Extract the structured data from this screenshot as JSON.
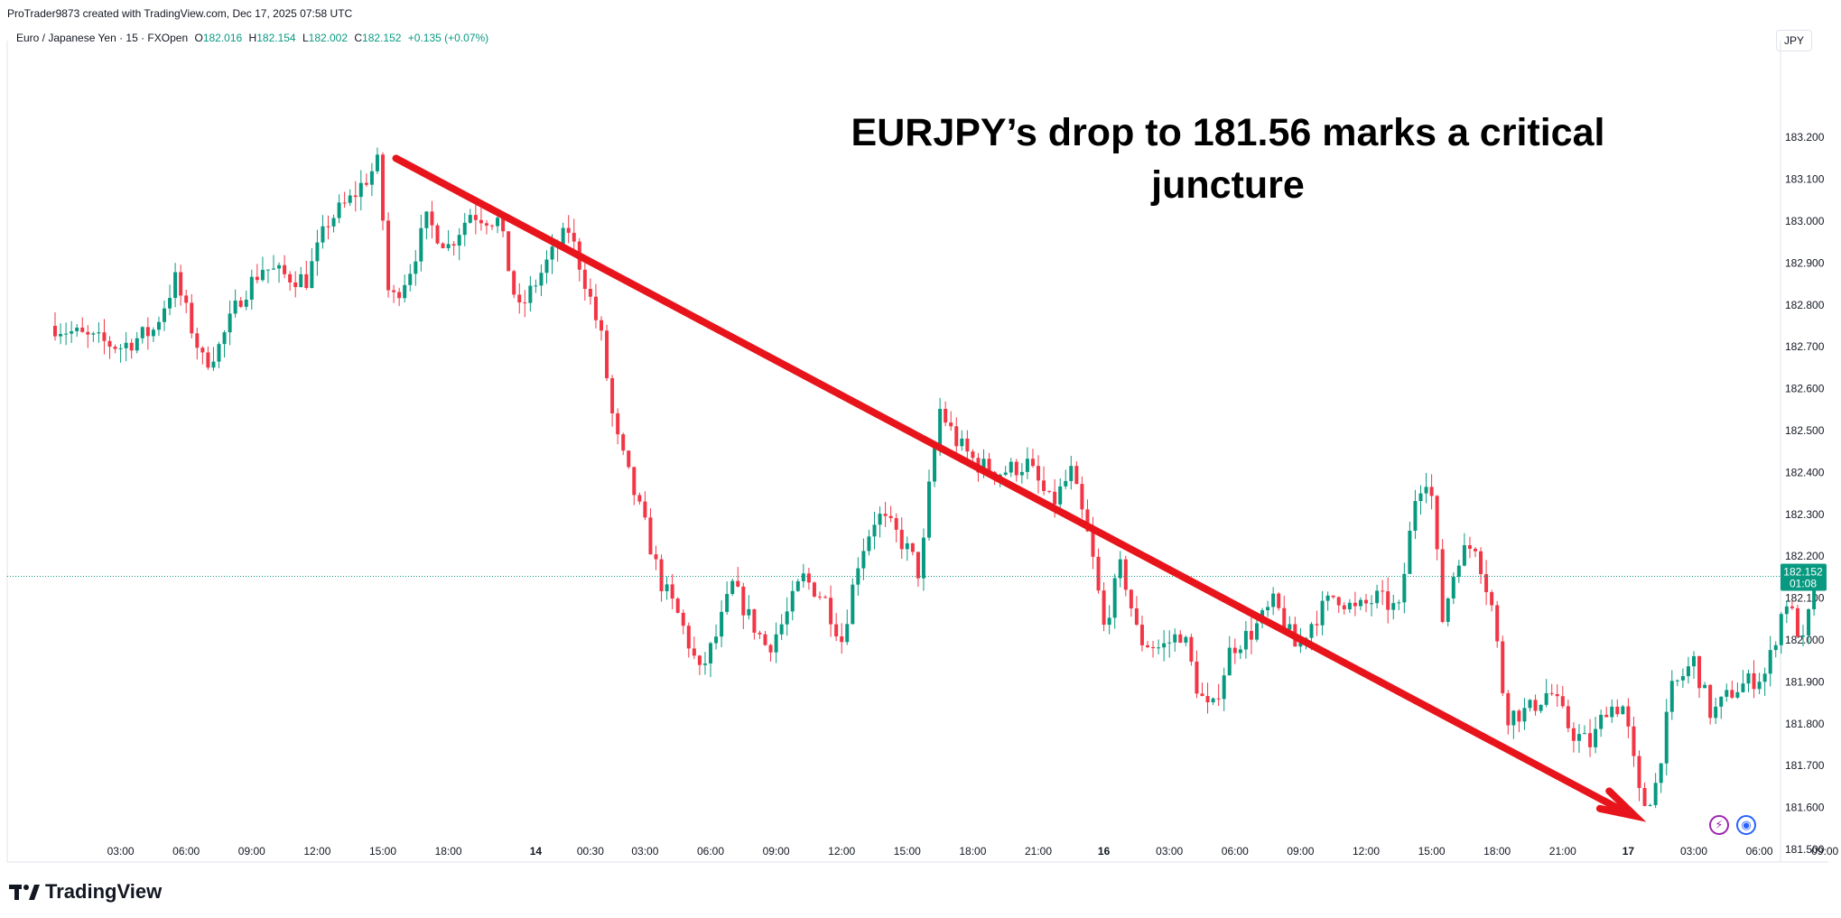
{
  "header": {
    "attribution": "ProTrader9873 created with TradingView.com, Dec 17, 2025 07:58 UTC",
    "symbol": "Euro / Japanese Yen · 15 · FXOpen",
    "open_label": "O",
    "open": "182.016",
    "high_label": "H",
    "high": "182.154",
    "low_label": "L",
    "low": "182.002",
    "close_label": "C",
    "close": "182.152",
    "change": "+0.135 (+0.07%)",
    "currency": "JPY"
  },
  "headline": {
    "line1": "EURJPY’s drop to 181.56 marks a critical",
    "line2": "juncture"
  },
  "brand": {
    "name": "TradingView"
  },
  "icons": {
    "bolt": "bolt-icon",
    "globe": "globe-icon"
  },
  "colors": {
    "up": "#089981",
    "down": "#f23645",
    "arrow": "#e8141b",
    "price_badge": "#089981"
  },
  "chart_data": {
    "type": "candlestick",
    "symbol": "EURJPY",
    "interval": "15",
    "ylim": [
      181.43,
      183.27
    ],
    "y_ticks": [
      "183.200",
      "183.100",
      "183.000",
      "182.900",
      "182.800",
      "182.700",
      "182.600",
      "182.500",
      "182.400",
      "182.300",
      "182.200",
      "182.100",
      "182.000",
      "181.900",
      "181.800",
      "181.700",
      "181.600",
      "181.500"
    ],
    "x_ticks": [
      {
        "label": "03:00",
        "pos": 3
      },
      {
        "label": "06:00",
        "pos": 6
      },
      {
        "label": "09:00",
        "pos": 9
      },
      {
        "label": "12:00",
        "pos": 12
      },
      {
        "label": "15:00",
        "pos": 15
      },
      {
        "label": "18:00",
        "pos": 18
      },
      {
        "label": "14",
        "pos": 22,
        "bold": true
      },
      {
        "label": "00:30",
        "pos": 24.5
      },
      {
        "label": "03:00",
        "pos": 27
      },
      {
        "label": "06:00",
        "pos": 30
      },
      {
        "label": "09:00",
        "pos": 33
      },
      {
        "label": "12:00",
        "pos": 36
      },
      {
        "label": "15:00",
        "pos": 39
      },
      {
        "label": "18:00",
        "pos": 42
      },
      {
        "label": "21:00",
        "pos": 45
      },
      {
        "label": "16",
        "pos": 48,
        "bold": true
      },
      {
        "label": "03:00",
        "pos": 51
      },
      {
        "label": "06:00",
        "pos": 54
      },
      {
        "label": "09:00",
        "pos": 57
      },
      {
        "label": "12:00",
        "pos": 60
      },
      {
        "label": "15:00",
        "pos": 63
      },
      {
        "label": "18:00",
        "pos": 66
      },
      {
        "label": "21:00",
        "pos": 69
      },
      {
        "label": "17",
        "pos": 72,
        "bold": true
      },
      {
        "label": "03:00",
        "pos": 75
      },
      {
        "label": "06:00",
        "pos": 78
      },
      {
        "label": "09:00",
        "pos": 81
      }
    ],
    "current_price": "182.152",
    "countdown": "01:08",
    "anchor_closes": [
      [
        0,
        182.75
      ],
      [
        1.5,
        182.72
      ],
      [
        3,
        182.7
      ],
      [
        4.5,
        182.74
      ],
      [
        5.5,
        182.86
      ],
      [
        6.8,
        182.66
      ],
      [
        7.5,
        182.7
      ],
      [
        8.5,
        182.82
      ],
      [
        9.5,
        182.89
      ],
      [
        10.5,
        182.87
      ],
      [
        11.5,
        182.86
      ],
      [
        12.5,
        183.0
      ],
      [
        13.5,
        183.05
      ],
      [
        14.8,
        183.14
      ],
      [
        15.3,
        182.8
      ],
      [
        16.2,
        182.88
      ],
      [
        17,
        183.0
      ],
      [
        18,
        182.94
      ],
      [
        19,
        183.02
      ],
      [
        20.3,
        183.0
      ],
      [
        21.2,
        182.78
      ],
      [
        22.5,
        182.9
      ],
      [
        23.5,
        182.98
      ],
      [
        24.3,
        182.85
      ],
      [
        25,
        182.72
      ],
      [
        25.6,
        182.5
      ],
      [
        26.2,
        182.4
      ],
      [
        27,
        182.27
      ],
      [
        27.7,
        182.14
      ],
      [
        28.6,
        182.05
      ],
      [
        29.5,
        181.92
      ],
      [
        30.2,
        182.0
      ],
      [
        31,
        182.13
      ],
      [
        31.8,
        182.05
      ],
      [
        32.6,
        181.98
      ],
      [
        33.4,
        182.05
      ],
      [
        34.2,
        182.15
      ],
      [
        35.2,
        182.1
      ],
      [
        36,
        182.0
      ],
      [
        36.8,
        182.2
      ],
      [
        37.6,
        182.3
      ],
      [
        38.4,
        182.26
      ],
      [
        39.2,
        182.2
      ],
      [
        39.6,
        182.15
      ],
      [
        40,
        182.36
      ],
      [
        40.5,
        182.55
      ],
      [
        41.3,
        182.47
      ],
      [
        42.2,
        182.42
      ],
      [
        43.2,
        182.4
      ],
      [
        44.5,
        182.42
      ],
      [
        45.6,
        182.32
      ],
      [
        46.5,
        182.4
      ],
      [
        47.4,
        182.22
      ],
      [
        48,
        182.03
      ],
      [
        48.8,
        182.18
      ],
      [
        49.6,
        182.0
      ],
      [
        50.6,
        181.98
      ],
      [
        51.6,
        182.02
      ],
      [
        52.3,
        181.88
      ],
      [
        52.9,
        181.82
      ],
      [
        53.8,
        181.98
      ],
      [
        54.8,
        182.02
      ],
      [
        55.8,
        182.09
      ],
      [
        56.8,
        181.98
      ],
      [
        57.6,
        182.05
      ],
      [
        58.6,
        182.11
      ],
      [
        59.5,
        182.07
      ],
      [
        60.5,
        182.1
      ],
      [
        61.5,
        182.07
      ],
      [
        62.3,
        182.36
      ],
      [
        62.9,
        182.4
      ],
      [
        63.5,
        182.05
      ],
      [
        64.2,
        182.2
      ],
      [
        65,
        182.23
      ],
      [
        65.8,
        182.07
      ],
      [
        66.4,
        181.82
      ],
      [
        67.4,
        181.83
      ],
      [
        68.4,
        181.88
      ],
      [
        69.4,
        181.78
      ],
      [
        70.3,
        181.75
      ],
      [
        71,
        181.84
      ],
      [
        71.8,
        181.84
      ],
      [
        72.6,
        181.6
      ],
      [
        73.2,
        181.64
      ],
      [
        74,
        181.88
      ],
      [
        75,
        181.95
      ],
      [
        75.8,
        181.82
      ],
      [
        76.8,
        181.88
      ],
      [
        77.5,
        181.9
      ],
      [
        78.3,
        181.92
      ],
      [
        79.2,
        182.1
      ],
      [
        80,
        181.99
      ],
      [
        80.6,
        182.15
      ]
    ],
    "trend_arrow": {
      "from": {
        "x": 15.6,
        "y": 183.15
      },
      "to": {
        "x": 72.3,
        "y": 181.58
      }
    }
  }
}
